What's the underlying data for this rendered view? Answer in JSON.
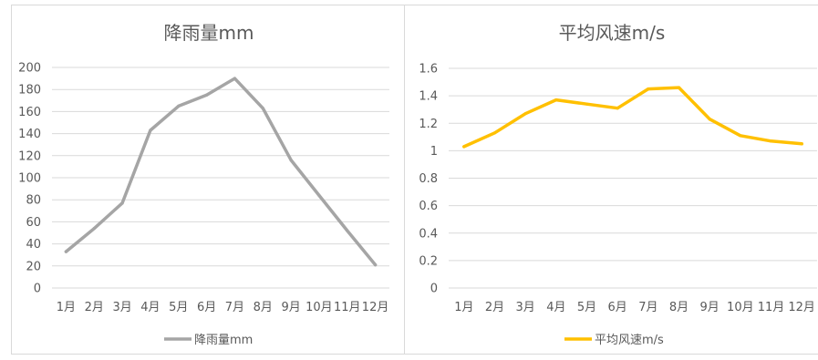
{
  "chart_data": [
    {
      "type": "line",
      "title": "降雨量mm",
      "categories": [
        "1月",
        "2月",
        "3月",
        "4月",
        "5月",
        "6月",
        "7月",
        "8月",
        "9月",
        "10月",
        "11月",
        "12月"
      ],
      "series": [
        {
          "name": "降雨量mm",
          "color": "#a5a5a5",
          "values": [
            33,
            54,
            77,
            143,
            165,
            175,
            190,
            163,
            116,
            84,
            52,
            21
          ]
        }
      ],
      "ylim": [
        0,
        200
      ],
      "yticks": [
        "0",
        "20",
        "40",
        "60",
        "80",
        "100",
        "120",
        "140",
        "160",
        "180",
        "200"
      ],
      "grid": true,
      "legend": "bottom"
    },
    {
      "type": "line",
      "title": "平均风速m/s",
      "categories": [
        "1月",
        "2月",
        "3月",
        "4月",
        "5月",
        "6月",
        "7月",
        "8月",
        "9月",
        "10月",
        "11月",
        "12月"
      ],
      "series": [
        {
          "name": "平均风速m/s",
          "color": "#ffc000",
          "values": [
            1.03,
            1.13,
            1.27,
            1.37,
            1.34,
            1.31,
            1.45,
            1.46,
            1.23,
            1.11,
            1.07,
            1.05
          ]
        }
      ],
      "ylim": [
        0,
        1.6
      ],
      "yticks": [
        "0",
        "0.2",
        "0.4",
        "0.6",
        "0.8",
        "1",
        "1.2",
        "1.4",
        "1.6"
      ],
      "grid": true,
      "legend": "bottom"
    }
  ]
}
